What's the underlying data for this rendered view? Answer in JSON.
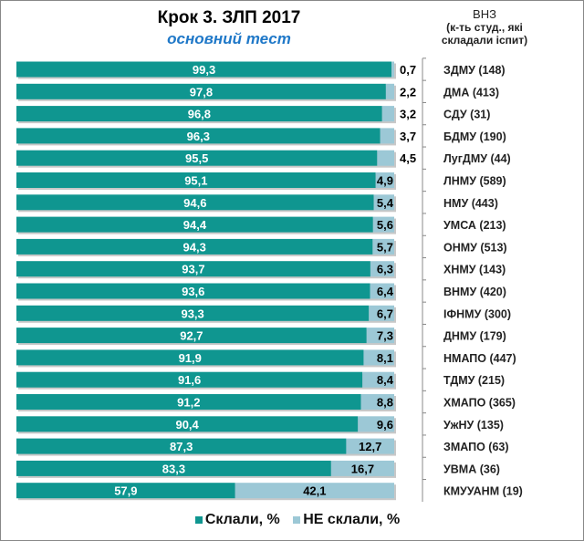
{
  "chart_data": {
    "type": "bar",
    "stacked": true,
    "orientation": "horizontal",
    "title": "Крок 3. ЗЛП  2017",
    "subtitle": "основний тест",
    "category_axis_title": [
      "ВНЗ",
      "(к-ть студ., які",
      "складали іспит)"
    ],
    "categories": [
      "ЗДМУ (148)",
      "ДМА (413)",
      "СДУ (31)",
      "БДМУ (190)",
      "ЛугДМУ (44)",
      "ЛНМУ (589)",
      "НМУ (443)",
      "УМСА (213)",
      "ОНМУ (513)",
      "ХНМУ (143)",
      "ВНМУ (420)",
      "ІФНМУ (300)",
      "ДНМУ (179)",
      "НМАПО (447)",
      "ТДМУ (215)",
      "ХМАПО (365)",
      "УжНУ (135)",
      "ЗМАПО (63)",
      "УВМА (36)",
      "КМУУАНМ (19)"
    ],
    "series": [
      {
        "name": "Склали, %",
        "color": "#0f9690",
        "values": [
          99.3,
          97.8,
          96.8,
          96.3,
          95.5,
          95.1,
          94.6,
          94.4,
          94.3,
          93.7,
          93.6,
          93.3,
          92.7,
          91.9,
          91.6,
          91.2,
          90.4,
          87.3,
          83.3,
          57.9
        ],
        "labels": [
          "99,3",
          "97,8",
          "96,8",
          "96,3",
          "95,5",
          "95,1",
          "94,6",
          "94,4",
          "94,3",
          "93,7",
          "93,6",
          "93,3",
          "92,7",
          "91,9",
          "91,6",
          "91,2",
          "90,4",
          "87,3",
          "83,3",
          "57,9"
        ]
      },
      {
        "name": "НЕ склали, %",
        "color": "#9cc8d6",
        "values": [
          0.7,
          2.2,
          3.2,
          3.7,
          4.5,
          4.9,
          5.4,
          5.6,
          5.7,
          6.3,
          6.4,
          6.7,
          7.3,
          8.1,
          8.4,
          8.8,
          9.6,
          12.7,
          16.7,
          42.1
        ],
        "labels": [
          "0,7",
          "2,2",
          "3,2",
          "3,7",
          "4,5",
          "4,9",
          "5,4",
          "5,6",
          "5,7",
          "6,3",
          "6,4",
          "6,7",
          "7,3",
          "8,1",
          "8,4",
          "8,8",
          "9,6",
          "12,7",
          "16,7",
          "42,1"
        ]
      }
    ],
    "xlim": [
      0,
      100
    ],
    "grid": false,
    "legend": "bottom"
  }
}
